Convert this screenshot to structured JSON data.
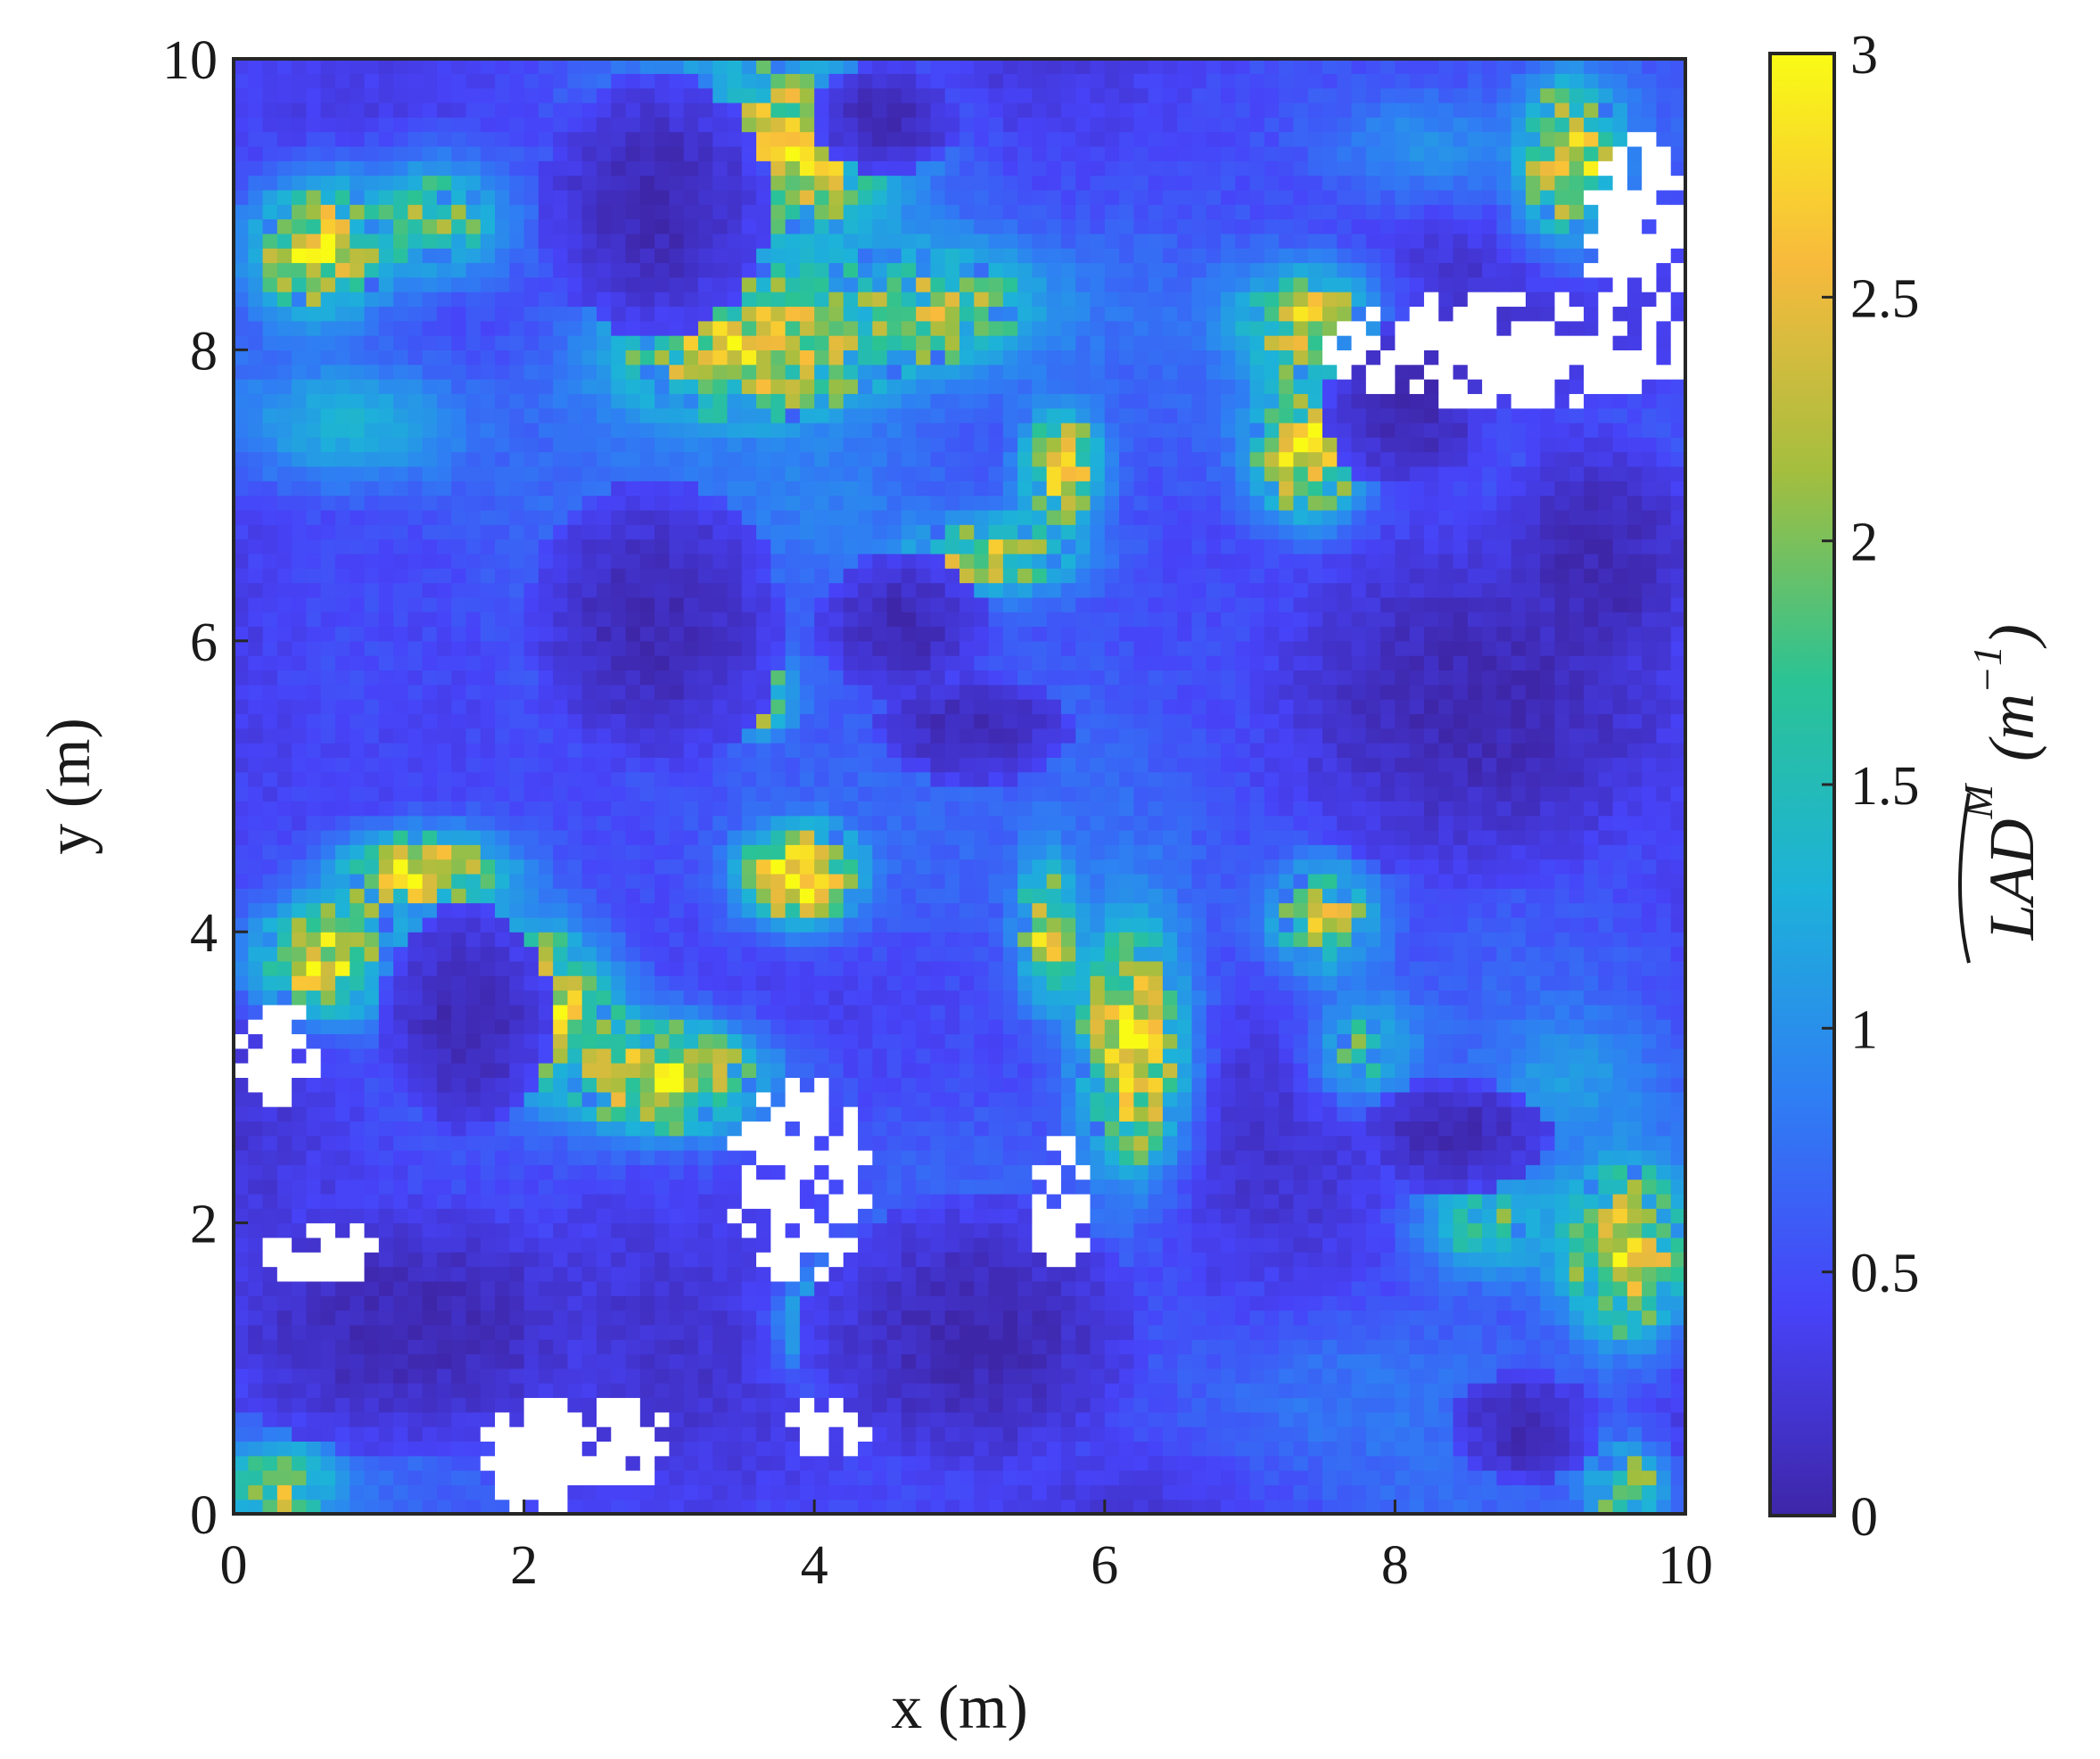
{
  "chart_data": {
    "type": "heatmap",
    "title": "",
    "xlabel": "x (m)",
    "ylabel": "y (m)",
    "xlim": [
      0,
      10
    ],
    "ylim": [
      0,
      10
    ],
    "xticks": [
      "0",
      "2",
      "4",
      "6",
      "8",
      "10"
    ],
    "yticks": [
      "0",
      "2",
      "4",
      "6",
      "8",
      "10"
    ],
    "grid": false,
    "colorbar": {
      "label_main": "LAD",
      "label_sup": "M",
      "label_unit": "(m",
      "label_unit_sup": "−1",
      "label_close": ")",
      "range": [
        0,
        3
      ],
      "ticks": [
        "0",
        "0.5",
        "1",
        "1.5",
        "2",
        "2.5",
        "3"
      ],
      "colormap": [
        "#3e26a8",
        "#4743f8",
        "#2f7ef3",
        "#1db2d9",
        "#2bc394",
        "#a4be3e",
        "#f8ba3d",
        "#f9fb15"
      ]
    },
    "grid_resolution_m": 0.1,
    "background_value": 0.1,
    "no_data_color": "#ffffff",
    "features": [
      {
        "type": "blob",
        "x": 0.6,
        "y": 8.7,
        "rx": 0.5,
        "ry": 0.5,
        "value": 2.6
      },
      {
        "type": "blob",
        "x": 1.4,
        "y": 8.9,
        "rx": 0.6,
        "ry": 0.5,
        "value": 1.7
      },
      {
        "type": "blob",
        "x": 0.8,
        "y": 7.5,
        "rx": 0.9,
        "ry": 0.5,
        "value": 1.3
      },
      {
        "type": "blob",
        "x": 3.8,
        "y": 9.4,
        "rx": 0.9,
        "ry": 0.6,
        "value": 2.6
      },
      {
        "type": "blob",
        "x": 3.6,
        "y": 8.0,
        "rx": 1.1,
        "ry": 0.6,
        "value": 2.4
      },
      {
        "type": "blob",
        "x": 4.8,
        "y": 8.3,
        "rx": 0.9,
        "ry": 0.5,
        "value": 1.9
      },
      {
        "type": "blob",
        "x": 5.2,
        "y": 6.6,
        "rx": 0.7,
        "ry": 0.3,
        "value": 2.2
      },
      {
        "type": "blob",
        "x": 5.7,
        "y": 7.2,
        "rx": 0.3,
        "ry": 0.4,
        "value": 2.5
      },
      {
        "type": "blob",
        "x": 4.0,
        "y": 7.1,
        "rx": 1.3,
        "ry": 1.0,
        "value": 0.9
      },
      {
        "type": "blob",
        "x": 3.6,
        "y": 5.6,
        "rx": 0.3,
        "ry": 0.3,
        "value": 2.0
      },
      {
        "type": "blob",
        "x": 3.9,
        "y": 4.4,
        "rx": 0.5,
        "ry": 0.4,
        "value": 2.8
      },
      {
        "type": "blob",
        "x": 4.5,
        "y": 4.8,
        "rx": 1.9,
        "ry": 1.1,
        "value": 0.7
      },
      {
        "type": "blob",
        "x": 7.4,
        "y": 8.2,
        "rx": 0.5,
        "ry": 0.4,
        "value": 2.3
      },
      {
        "type": "blob",
        "x": 7.4,
        "y": 7.3,
        "rx": 0.4,
        "ry": 0.5,
        "value": 2.6
      },
      {
        "type": "blob",
        "x": 9.2,
        "y": 9.3,
        "rx": 0.4,
        "ry": 0.6,
        "value": 2.6
      },
      {
        "type": "blob",
        "x": 8.2,
        "y": 9.4,
        "rx": 0.9,
        "ry": 0.5,
        "value": 1.0
      },
      {
        "type": "blob",
        "x": 1.3,
        "y": 4.4,
        "rx": 0.6,
        "ry": 0.3,
        "value": 2.6
      },
      {
        "type": "blob",
        "x": 0.6,
        "y": 3.8,
        "rx": 0.5,
        "ry": 0.4,
        "value": 2.6
      },
      {
        "type": "blob",
        "x": 2.1,
        "y": 3.5,
        "rx": 0.5,
        "ry": 0.5,
        "value": 2.7
      },
      {
        "type": "blob",
        "x": 3.0,
        "y": 3.0,
        "rx": 0.7,
        "ry": 0.4,
        "value": 2.6
      },
      {
        "type": "blob",
        "x": 6.2,
        "y": 3.2,
        "rx": 0.4,
        "ry": 0.9,
        "value": 2.7
      },
      {
        "type": "blob",
        "x": 5.6,
        "y": 4.0,
        "rx": 0.2,
        "ry": 0.5,
        "value": 2.4
      },
      {
        "type": "blob",
        "x": 7.5,
        "y": 4.1,
        "rx": 0.4,
        "ry": 0.4,
        "value": 2.1
      },
      {
        "type": "blob",
        "x": 8.6,
        "y": 2.0,
        "rx": 0.5,
        "ry": 0.4,
        "value": 1.6
      },
      {
        "type": "blob",
        "x": 9.6,
        "y": 1.8,
        "rx": 0.5,
        "ry": 0.7,
        "value": 2.4
      },
      {
        "type": "blob",
        "x": 7.8,
        "y": 3.2,
        "rx": 0.4,
        "ry": 0.4,
        "value": 1.5
      },
      {
        "type": "blob",
        "x": 9.2,
        "y": 3.0,
        "rx": 0.6,
        "ry": 0.4,
        "value": 1.1
      },
      {
        "type": "blob",
        "x": 4.2,
        "y": 1.3,
        "rx": 0.4,
        "ry": 0.4,
        "value": 2.3
      },
      {
        "type": "blob",
        "x": 0.3,
        "y": 0.2,
        "rx": 0.4,
        "ry": 0.3,
        "value": 2.1
      },
      {
        "type": "blob",
        "x": 9.6,
        "y": 0.2,
        "rx": 0.3,
        "ry": 0.3,
        "value": 2.0
      },
      {
        "type": "blob",
        "x": 7.8,
        "y": 0.8,
        "rx": 1.5,
        "ry": 0.6,
        "value": 0.8
      },
      {
        "type": "blob",
        "x": 0.8,
        "y": 6.0,
        "rx": 0.9,
        "ry": 1.4,
        "value": 0.5
      },
      {
        "type": "blob",
        "x": 6.8,
        "y": 6.0,
        "rx": 0.9,
        "ry": 0.9,
        "value": 0.5
      },
      {
        "type": "dark",
        "x": 1.6,
        "y": 3.4,
        "rx": 0.6,
        "ry": 0.8
      },
      {
        "type": "dark",
        "x": 2.9,
        "y": 6.1,
        "rx": 0.9,
        "ry": 1.0
      },
      {
        "type": "dark",
        "x": 4.6,
        "y": 6.1,
        "rx": 0.6,
        "ry": 0.5
      },
      {
        "type": "dark",
        "x": 5.1,
        "y": 5.4,
        "rx": 0.7,
        "ry": 0.4
      },
      {
        "type": "dark",
        "x": 2.9,
        "y": 9.0,
        "rx": 0.8,
        "ry": 0.9
      },
      {
        "type": "dark",
        "x": 8.6,
        "y": 5.6,
        "rx": 1.6,
        "ry": 1.3
      },
      {
        "type": "dark",
        "x": 8.1,
        "y": 7.6,
        "rx": 0.6,
        "ry": 0.6
      },
      {
        "type": "dark",
        "x": 9.4,
        "y": 6.5,
        "rx": 0.8,
        "ry": 1.0
      },
      {
        "type": "dark",
        "x": 1.2,
        "y": 1.3,
        "rx": 1.5,
        "ry": 0.9
      },
      {
        "type": "dark",
        "x": 5.1,
        "y": 1.2,
        "rx": 1.2,
        "ry": 1.0
      },
      {
        "type": "dark",
        "x": 8.4,
        "y": 2.6,
        "rx": 0.7,
        "ry": 0.4
      },
      {
        "type": "dark",
        "x": 8.9,
        "y": 0.6,
        "rx": 0.5,
        "ry": 0.4
      },
      {
        "type": "dark",
        "x": 4.5,
        "y": 9.6,
        "rx": 0.5,
        "ry": 0.4
      },
      {
        "type": "nodata",
        "x": 8.8,
        "y": 8.0,
        "rx": 1.3,
        "ry": 0.4
      },
      {
        "type": "nodata",
        "x": 9.7,
        "y": 8.8,
        "rx": 0.4,
        "ry": 0.7
      },
      {
        "type": "nodata",
        "x": 0.3,
        "y": 3.2,
        "rx": 0.3,
        "ry": 0.4
      },
      {
        "type": "nodata",
        "x": 3.9,
        "y": 2.3,
        "rx": 0.5,
        "ry": 0.7
      },
      {
        "type": "nodata",
        "x": 5.7,
        "y": 2.1,
        "rx": 0.2,
        "ry": 0.5
      },
      {
        "type": "nodata",
        "x": 2.1,
        "y": 0.4,
        "rx": 0.4,
        "ry": 0.4
      },
      {
        "type": "nodata",
        "x": 2.7,
        "y": 0.5,
        "rx": 0.3,
        "ry": 0.3
      },
      {
        "type": "nodata",
        "x": 4.1,
        "y": 0.6,
        "rx": 0.3,
        "ry": 0.2
      },
      {
        "type": "nodata",
        "x": 0.6,
        "y": 1.8,
        "rx": 0.4,
        "ry": 0.2
      }
    ]
  }
}
